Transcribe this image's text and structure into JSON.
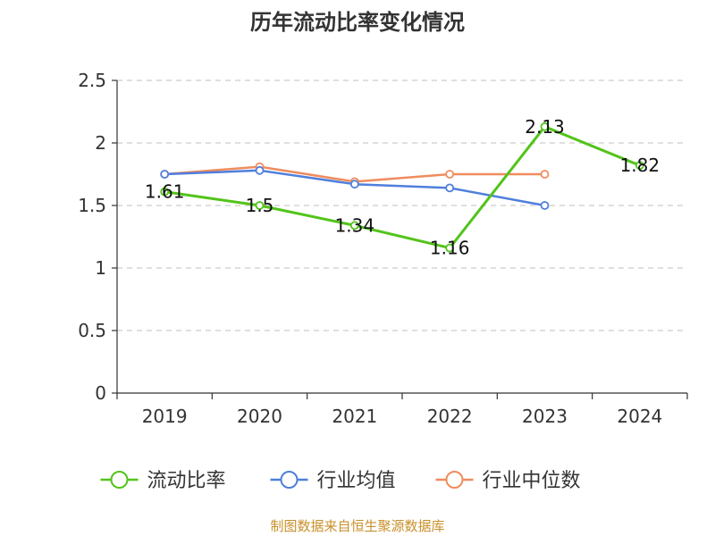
{
  "chart_data": {
    "type": "line",
    "title": "历年流动比率变化情况",
    "categories": [
      "2019",
      "2020",
      "2021",
      "2022",
      "2023",
      "2024"
    ],
    "ylim": [
      0,
      2.5
    ],
    "yticks": [
      "0",
      "0.5",
      "1",
      "1.5",
      "2",
      "2.5"
    ],
    "grid": true,
    "legend_position": "bottom",
    "series": [
      {
        "name": "流动比率",
        "color": "#52c41a",
        "values": [
          1.61,
          1.5,
          1.34,
          1.16,
          2.13,
          1.82
        ],
        "labels": [
          "1.61",
          "1.5",
          "1.34",
          "1.16",
          "2.13",
          "1.82"
        ]
      },
      {
        "name": "行业均值",
        "color": "#4f7fdc",
        "values": [
          1.75,
          1.78,
          1.67,
          1.64,
          1.5,
          null
        ]
      },
      {
        "name": "行业中位数",
        "color": "#f08c5e",
        "values": [
          1.75,
          1.81,
          1.69,
          1.75,
          1.75,
          null
        ]
      }
    ],
    "source": "制图数据来自恒生聚源数据库"
  }
}
